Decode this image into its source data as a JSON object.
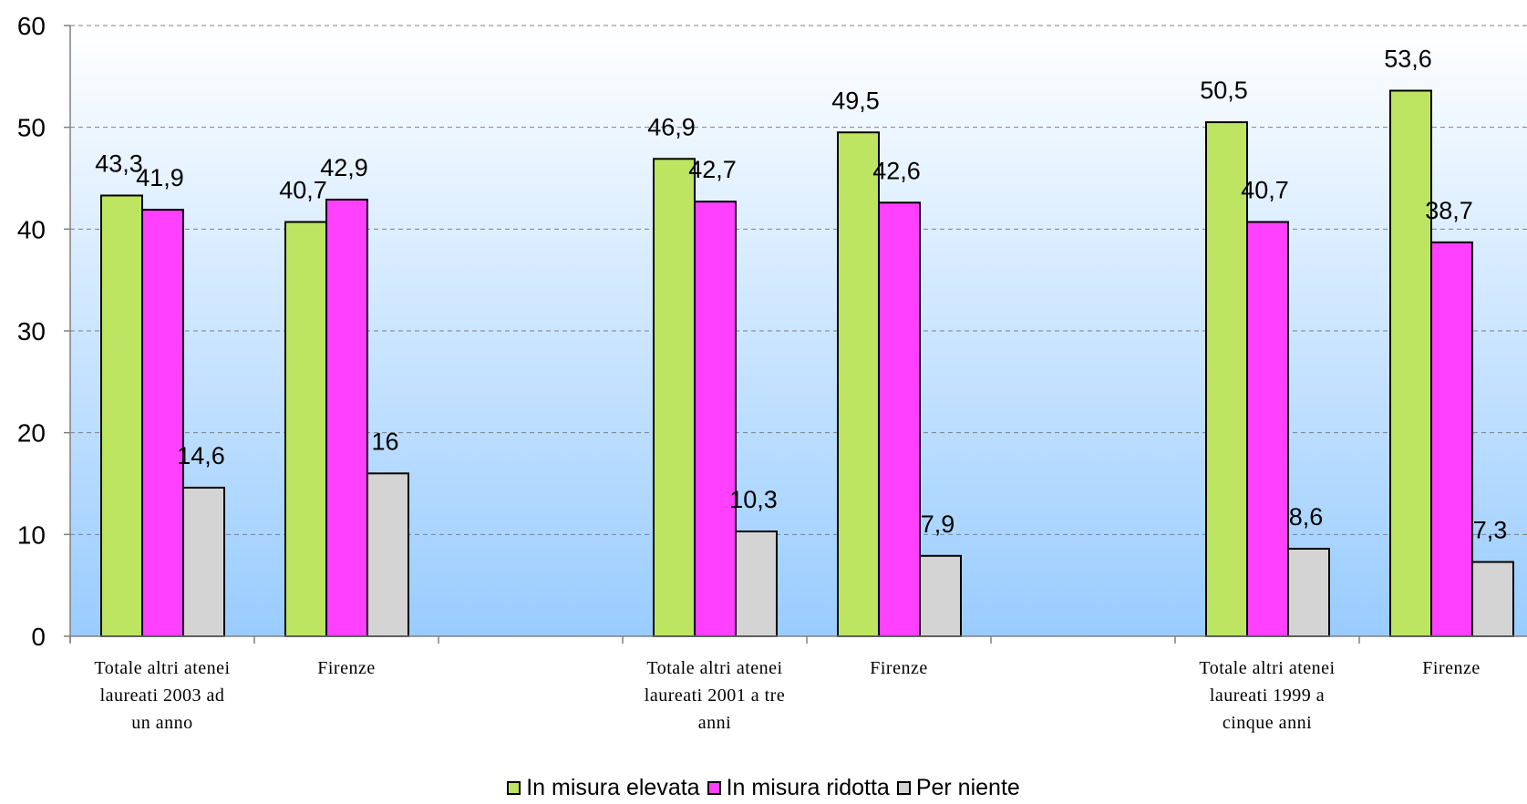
{
  "chart_data": {
    "type": "bar",
    "ylim": [
      0,
      60
    ],
    "yticks": [
      0,
      10,
      20,
      30,
      40,
      50,
      60
    ],
    "grid": true,
    "legend_position": "bottom",
    "categories": [
      [
        "Totale altri atenei",
        "laureati 2003 ad",
        "un anno"
      ],
      [
        "Firenze"
      ],
      [],
      [
        "Totale altri atenei",
        "laureati 2001 a tre",
        "anni"
      ],
      [
        "Firenze"
      ],
      [],
      [
        "Totale altri atenei",
        "laureati 1999 a",
        "cinque anni"
      ],
      [
        "Firenze"
      ]
    ],
    "series": [
      {
        "name": "In misura elevata",
        "color": "#bde561",
        "values": [
          43.3,
          40.7,
          null,
          46.9,
          49.5,
          null,
          50.5,
          53.6
        ],
        "labels": [
          "43,3",
          "40,7",
          "",
          "46,9",
          "49,5",
          "",
          "50,5",
          "53,6"
        ]
      },
      {
        "name": "In misura ridotta",
        "color": "#ff40ff",
        "values": [
          41.9,
          42.9,
          null,
          42.7,
          42.6,
          null,
          40.7,
          38.7
        ],
        "labels": [
          "41,9",
          "42,9",
          "",
          "42,7",
          "42,6",
          "",
          "40,7",
          "38,7"
        ]
      },
      {
        "name": "Per niente",
        "color": "#d4d4d4",
        "values": [
          14.6,
          16,
          null,
          10.3,
          7.9,
          null,
          8.6,
          7.3
        ],
        "labels": [
          "14,6",
          "16",
          "",
          "10,3",
          "7,9",
          "",
          "8,6",
          "7,3"
        ]
      }
    ]
  }
}
